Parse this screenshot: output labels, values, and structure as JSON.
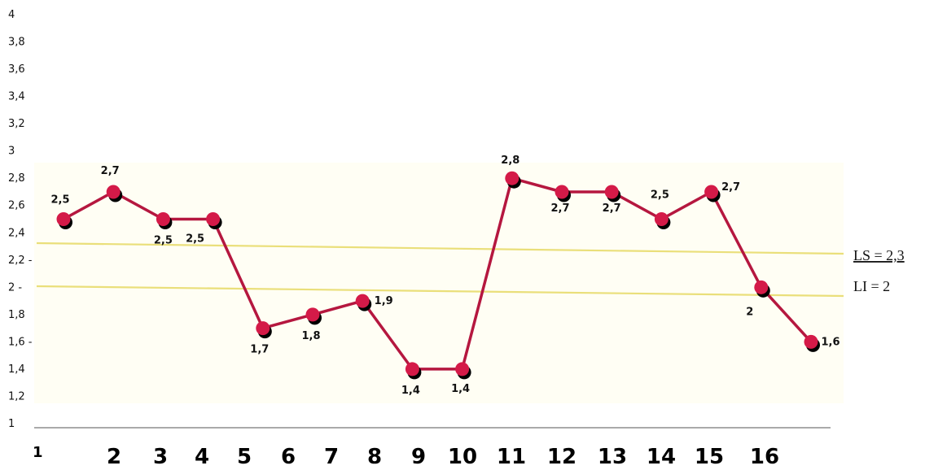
{
  "chart_data": {
    "type": "line",
    "categories": [
      "1",
      "2",
      "3",
      "4",
      "5",
      "6",
      "7",
      "8",
      "9",
      "10",
      "11",
      "12",
      "13",
      "14",
      "15",
      "16"
    ],
    "series": [
      {
        "values": [
          2.5,
          2.7,
          2.5,
          2.5,
          1.7,
          1.8,
          1.9,
          1.4,
          1.4,
          2.8,
          2.7,
          2.7,
          2.5,
          2.7,
          2.0,
          1.6
        ],
        "data_labels": [
          "2,5",
          "2,7",
          "2,5",
          "2,5",
          "1,7",
          "1,8",
          "1,9",
          "1,4",
          "1,4",
          "2,8",
          "2,7",
          "2,7",
          "2,5",
          "2,7",
          "2",
          "1,6"
        ],
        "color": "#b5173f",
        "marker_color": "#d41a48",
        "shadow_color": "#000000"
      }
    ],
    "y_ticks": [
      {
        "value": 1,
        "label": "1"
      },
      {
        "value": 1.2,
        "label": "1,2"
      },
      {
        "value": 1.4,
        "label": "1,4"
      },
      {
        "value": 1.6,
        "label": "1,6 -"
      },
      {
        "value": 1.8,
        "label": "1,8"
      },
      {
        "value": 2,
        "label": "2 -"
      },
      {
        "value": 2.2,
        "label": "2,2 -"
      },
      {
        "value": 2.4,
        "label": "2,4"
      },
      {
        "value": 2.6,
        "label": "2,6"
      },
      {
        "value": 2.8,
        "label": "2,8"
      },
      {
        "value": 3,
        "label": "3"
      },
      {
        "value": 3.2,
        "label": "3,2"
      },
      {
        "value": 3.4,
        "label": "3,4"
      },
      {
        "value": 3.6,
        "label": "3,6"
      },
      {
        "value": 3.8,
        "label": "3,8"
      },
      {
        "value": 4,
        "label": "4"
      }
    ],
    "ylim": [
      1,
      4
    ],
    "reference_lines": [
      {
        "label": "LS = 2,3",
        "value": 2.3,
        "color": "#eadf7a"
      },
      {
        "label": "LI = 2",
        "value": 2.0,
        "color": "#eadf7a"
      }
    ],
    "plot_background": "#fffef4",
    "title": "",
    "xlabel": "",
    "ylabel": "",
    "grid": false,
    "legend": "none"
  }
}
